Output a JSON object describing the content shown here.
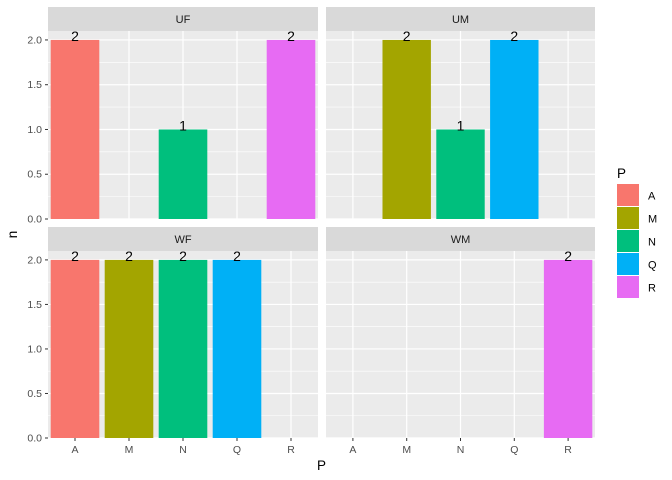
{
  "chart_data": {
    "type": "bar",
    "facet_type": "grid-2x2",
    "xlabel": "P",
    "ylabel": "n",
    "categories": [
      "A",
      "M",
      "N",
      "Q",
      "R"
    ],
    "ylim": [
      0,
      2.1
    ],
    "yticks": [
      0.0,
      0.5,
      1.0,
      1.5,
      2.0
    ],
    "ytick_labels": [
      "0.0",
      "0.5",
      "1.0",
      "1.5",
      "2.0"
    ],
    "grid": true,
    "legend": {
      "title": "P",
      "position": "right",
      "entries": [
        "A",
        "M",
        "N",
        "Q",
        "R"
      ]
    },
    "colors": {
      "A": "#F8766D",
      "M": "#A3A500",
      "N": "#00BF7D",
      "Q": "#00B0F6",
      "R": "#E76BF3"
    },
    "panel_bg": "#EBEBEB",
    "strip_bg": "#D9D9D9",
    "facets": [
      {
        "label": "UF",
        "values": {
          "A": 2,
          "N": 1,
          "R": 2
        }
      },
      {
        "label": "UM",
        "values": {
          "M": 2,
          "N": 1,
          "Q": 2
        }
      },
      {
        "label": "WF",
        "values": {
          "A": 2,
          "M": 2,
          "N": 2,
          "Q": 2
        }
      },
      {
        "label": "WM",
        "values": {
          "R": 2
        }
      }
    ]
  }
}
